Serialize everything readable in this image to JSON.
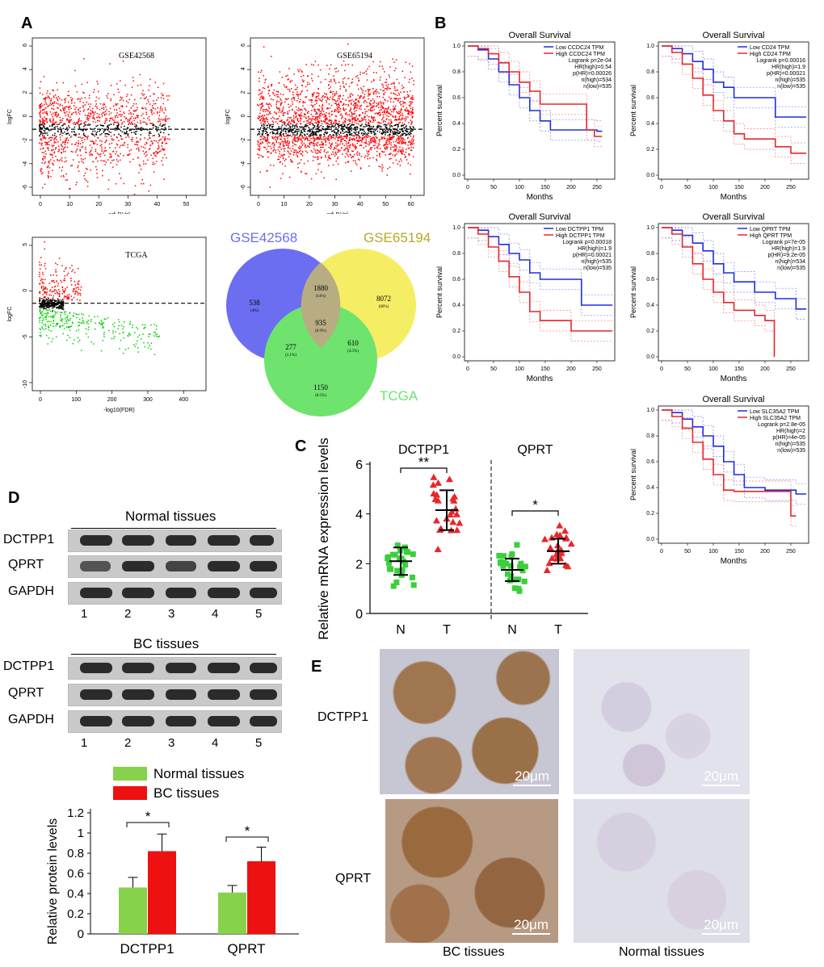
{
  "panels": {
    "A": "A",
    "B": "B",
    "C": "C",
    "D": "D",
    "E": "E"
  },
  "volcano": [
    {
      "label": "GSE42568",
      "ylabel": "logFC",
      "xlabel": "adj.P.Val",
      "xticks": [
        "0",
        "10",
        "20",
        "30",
        "40",
        "50"
      ],
      "yticks": [
        "6",
        "4",
        "2",
        "0",
        "-2",
        "-4",
        "-6"
      ]
    },
    {
      "label": "GSE65194",
      "ylabel": "logFC",
      "xlabel": "adj.P.Val",
      "xticks": [
        "0",
        "10",
        "20",
        "30",
        "40",
        "50",
        "60"
      ],
      "yticks": [
        "6",
        "4",
        "2",
        "0",
        "-2",
        "-4",
        "-6"
      ]
    },
    {
      "label": "TCGA",
      "ylabel": "logFC",
      "xlabel": "-log10(FDR)",
      "xticks": [
        "0",
        "100",
        "200",
        "300",
        "400"
      ],
      "yticks": [
        "5",
        "0",
        "-5",
        "-10"
      ]
    }
  ],
  "venn": {
    "set_a": "GSE42568",
    "set_b": "GSE65194",
    "set_c": "TCGA",
    "regions": [
      {
        "id": "a_only",
        "n": "538",
        "pct": "(4%)"
      },
      {
        "id": "ab",
        "n": "1880",
        "pct": "(14%)"
      },
      {
        "id": "b_only",
        "n": "8072",
        "pct": "(60%)"
      },
      {
        "id": "abc",
        "n": "935",
        "pct": "(6.9%)"
      },
      {
        "id": "ac",
        "n": "277",
        "pct": "(2.1%)"
      },
      {
        "id": "bc",
        "n": "610",
        "pct": "(4.5%)"
      },
      {
        "id": "c_only",
        "n": "1150",
        "pct": "(8.5%)"
      }
    ],
    "colors": {
      "a": "#6b6ef0",
      "b": "#f5ee64",
      "c": "#6ee36e"
    }
  },
  "km": [
    {
      "title": "Overall Survival",
      "legend": [
        "Low CCDC24 TPM",
        "High CCDC24 TPM"
      ],
      "stats": [
        "Logrank p=2e-04",
        "HR(high)=0.54",
        "p(HR)=0.00026",
        "n(high)=534",
        "n(low)=535"
      ],
      "xmax": 250,
      "low": [
        [
          0,
          1
        ],
        [
          20,
          0.97
        ],
        [
          40,
          0.9
        ],
        [
          60,
          0.8
        ],
        [
          80,
          0.7
        ],
        [
          100,
          0.6
        ],
        [
          120,
          0.5
        ],
        [
          140,
          0.42
        ],
        [
          160,
          0.35
        ],
        [
          200,
          0.35
        ],
        [
          250,
          0.34
        ],
        [
          260,
          0.34
        ]
      ],
      "high": [
        [
          0,
          1
        ],
        [
          20,
          0.98
        ],
        [
          40,
          0.94
        ],
        [
          60,
          0.87
        ],
        [
          80,
          0.8
        ],
        [
          100,
          0.72
        ],
        [
          120,
          0.65
        ],
        [
          140,
          0.55
        ],
        [
          160,
          0.55
        ],
        [
          200,
          0.55
        ],
        [
          230,
          0.35
        ],
        [
          245,
          0.3
        ],
        [
          260,
          0.3
        ]
      ]
    },
    {
      "title": "Overall Survival",
      "legend": [
        "Low CD24 TPM",
        "High CD24 TPM"
      ],
      "stats": [
        "Logrank p=0.00016",
        "HR(high)=1.9",
        "p(HR)=0.00021",
        "n(high)=535",
        "n(low)=535"
      ],
      "xmax": 250,
      "low": [
        [
          0,
          1
        ],
        [
          20,
          0.98
        ],
        [
          40,
          0.94
        ],
        [
          60,
          0.88
        ],
        [
          80,
          0.82
        ],
        [
          100,
          0.72
        ],
        [
          120,
          0.68
        ],
        [
          140,
          0.6
        ],
        [
          200,
          0.6
        ],
        [
          220,
          0.45
        ],
        [
          280,
          0.45
        ]
      ],
      "high": [
        [
          0,
          1
        ],
        [
          20,
          0.95
        ],
        [
          40,
          0.86
        ],
        [
          60,
          0.75
        ],
        [
          80,
          0.62
        ],
        [
          100,
          0.5
        ],
        [
          120,
          0.42
        ],
        [
          140,
          0.32
        ],
        [
          160,
          0.28
        ],
        [
          200,
          0.28
        ],
        [
          220,
          0.22
        ],
        [
          250,
          0.17
        ],
        [
          280,
          0.17
        ]
      ]
    },
    {
      "title": "Overall Survival",
      "legend": [
        "Low DCTPP1 TPM",
        "High DCTPP1 TPM"
      ],
      "stats": [
        "Logrank p=0.00018",
        "HR(high)=1.9",
        "p(HR)=0.00021",
        "n(high)=535",
        "n(low)=535"
      ],
      "xmax": 250,
      "low": [
        [
          0,
          1
        ],
        [
          20,
          0.98
        ],
        [
          40,
          0.93
        ],
        [
          60,
          0.87
        ],
        [
          80,
          0.8
        ],
        [
          100,
          0.75
        ],
        [
          120,
          0.65
        ],
        [
          140,
          0.6
        ],
        [
          200,
          0.6
        ],
        [
          220,
          0.4
        ],
        [
          280,
          0.4
        ]
      ],
      "high": [
        [
          0,
          1
        ],
        [
          20,
          0.95
        ],
        [
          40,
          0.85
        ],
        [
          60,
          0.74
        ],
        [
          80,
          0.62
        ],
        [
          100,
          0.5
        ],
        [
          120,
          0.35
        ],
        [
          140,
          0.28
        ],
        [
          180,
          0.28
        ],
        [
          200,
          0.2
        ],
        [
          280,
          0.2
        ]
      ]
    },
    {
      "title": "Overall Survival",
      "legend": [
        "Low QPRT TPM",
        "High QPRT TPM"
      ],
      "stats": [
        "Logrank p=7e-05",
        "HR(high)=1.9",
        "p(HR)=9.2e-05",
        "n(high)=534",
        "n(low)=535"
      ],
      "xmax": 250,
      "low": [
        [
          0,
          1
        ],
        [
          20,
          0.98
        ],
        [
          40,
          0.94
        ],
        [
          60,
          0.88
        ],
        [
          80,
          0.82
        ],
        [
          100,
          0.72
        ],
        [
          120,
          0.65
        ],
        [
          140,
          0.58
        ],
        [
          180,
          0.5
        ],
        [
          220,
          0.45
        ],
        [
          260,
          0.37
        ],
        [
          280,
          0.37
        ]
      ],
      "high": [
        [
          0,
          1
        ],
        [
          20,
          0.95
        ],
        [
          40,
          0.85
        ],
        [
          60,
          0.72
        ],
        [
          80,
          0.6
        ],
        [
          100,
          0.5
        ],
        [
          120,
          0.42
        ],
        [
          140,
          0.36
        ],
        [
          180,
          0.32
        ],
        [
          200,
          0.28
        ],
        [
          215,
          0.28
        ],
        [
          218,
          0.0
        ]
      ]
    },
    {
      "title": "Overall Survival",
      "legend": [
        "Low SLC35A2 TPM",
        "High SLC35A2 TPM"
      ],
      "stats": [
        "Logrank p=2.8e-05",
        "HR(high)=2",
        "p(HR)=4e-05",
        "n(high)=535",
        "n(low)=535"
      ],
      "xmax": 250,
      "low": [
        [
          0,
          1
        ],
        [
          20,
          0.98
        ],
        [
          40,
          0.93
        ],
        [
          60,
          0.87
        ],
        [
          80,
          0.8
        ],
        [
          100,
          0.72
        ],
        [
          120,
          0.6
        ],
        [
          140,
          0.5
        ],
        [
          160,
          0.4
        ],
        [
          200,
          0.38
        ],
        [
          260,
          0.35
        ],
        [
          280,
          0.35
        ]
      ],
      "high": [
        [
          0,
          1
        ],
        [
          20,
          0.95
        ],
        [
          40,
          0.86
        ],
        [
          60,
          0.75
        ],
        [
          80,
          0.62
        ],
        [
          100,
          0.5
        ],
        [
          120,
          0.38
        ],
        [
          140,
          0.37
        ],
        [
          240,
          0.37
        ],
        [
          250,
          0.18
        ],
        [
          260,
          0.18
        ]
      ]
    }
  ],
  "km_common": {
    "ylabel": "Percent survival",
    "xlabel": "Months",
    "xticks": [
      "0",
      "50",
      "100",
      "150",
      "200",
      "250"
    ],
    "yticks": [
      "0.0",
      "0.2",
      "0.4",
      "0.6",
      "0.8",
      "1.0"
    ],
    "low_color": "#1f2ee6",
    "high_color": "#e8262b"
  },
  "chart_data": [
    {
      "type": "scatter",
      "title": "",
      "ylabel": "Relative mRNA expression levels",
      "ylim": [
        0,
        6
      ],
      "yticks": [
        "0",
        "2",
        "4",
        "6"
      ],
      "groups": [
        {
          "gene": "DCTPP1",
          "categories": [
            "N",
            "T"
          ],
          "means": [
            2.1,
            4.15
          ],
          "sd": [
            0.55,
            0.8
          ],
          "sig": "**"
        },
        {
          "gene": "QPRT",
          "categories": [
            "N",
            "T"
          ],
          "means": [
            1.75,
            2.5
          ],
          "sd": [
            0.45,
            0.5
          ],
          "sig": "*"
        }
      ],
      "n_color": "#3ccf3c",
      "t_color": "#e8262b"
    },
    {
      "type": "bar",
      "ylabel": "Relative protein levels",
      "categories": [
        "DCTPP1",
        "QPRT"
      ],
      "ylim": [
        0,
        1.2
      ],
      "yticks": [
        "0",
        "0.2",
        "0.4",
        "0.6",
        "0.8",
        "1",
        "1.2"
      ],
      "series": [
        {
          "name": "Normal tissues",
          "values": [
            0.46,
            0.41
          ],
          "err": [
            0.1,
            0.07
          ],
          "color": "#86d24a"
        },
        {
          "name": "BC tissues",
          "values": [
            0.82,
            0.72
          ],
          "err": [
            0.17,
            0.14
          ],
          "color": "#ee1111"
        }
      ],
      "sig": [
        "*",
        "*"
      ]
    }
  ],
  "blots": {
    "normal_title": "Normal tissues",
    "bc_title": "BC tissues",
    "rows": [
      "DCTPP1",
      "QPRT",
      "GAPDH"
    ],
    "lanes": [
      "1",
      "2",
      "3",
      "4",
      "5"
    ]
  },
  "ihc": {
    "row_labels": [
      "DCTPP1",
      "QPRT"
    ],
    "col_labels": [
      "BC tissues",
      "Normal tissues"
    ],
    "scale": "20μm"
  }
}
